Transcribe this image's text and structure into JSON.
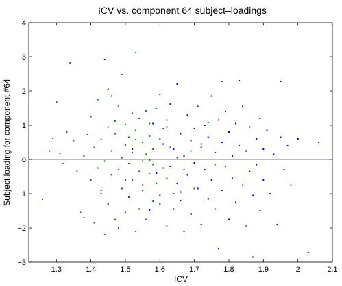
{
  "chart_data": {
    "type": "scatter",
    "title": "ICV vs. component 64 subject–loadings",
    "xlabel": "ICV",
    "ylabel": "Subject loading for component #64",
    "xlim": [
      1.22,
      2.1
    ],
    "ylim": [
      -3,
      4
    ],
    "xticks": [
      1.3,
      1.4,
      1.5,
      1.6,
      1.7,
      1.8,
      1.9,
      2,
      2.1
    ],
    "xtick_labels": [
      "1.3",
      "1.4",
      "1.5",
      "1.6",
      "1.7",
      "1.8",
      "1.9",
      "2",
      "2.1"
    ],
    "yticks": [
      -3,
      -2,
      -1,
      0,
      1,
      2,
      3,
      4
    ],
    "ytick_labels": [
      "−3",
      "−2",
      "−1",
      "0",
      "1",
      "2",
      "3",
      "4"
    ],
    "reference_line_y": 0,
    "grid": false,
    "series": [
      {
        "color": "#008000",
        "points": [
          [
            1.26,
            -1.18
          ],
          [
            1.28,
            0.25
          ],
          [
            1.29,
            0.62
          ],
          [
            1.3,
            1.68
          ],
          [
            1.31,
            0.18
          ],
          [
            1.32,
            -0.12
          ],
          [
            1.33,
            0.8
          ],
          [
            1.34,
            2.82
          ],
          [
            1.35,
            0.55
          ],
          [
            1.36,
            -0.35
          ],
          [
            1.37,
            -1.55
          ],
          [
            1.38,
            -1.7
          ],
          [
            1.38,
            0.1
          ],
          [
            1.39,
            0.72
          ],
          [
            1.4,
            1.25
          ],
          [
            1.4,
            -0.6
          ],
          [
            1.41,
            -1.85
          ],
          [
            1.41,
            0.35
          ],
          [
            1.42,
            -0.25
          ],
          [
            1.42,
            1.75
          ],
          [
            1.43,
            -0.9
          ],
          [
            1.43,
            0.58
          ],
          [
            1.44,
            -2.2
          ],
          [
            1.44,
            -0.05
          ],
          [
            1.45,
            2.05
          ],
          [
            1.45,
            0.95
          ],
          [
            1.45,
            -1.3
          ],
          [
            1.46,
            0.25
          ],
          [
            1.46,
            -0.45
          ],
          [
            1.47,
            1.12
          ],
          [
            1.47,
            -1.75
          ],
          [
            1.47,
            0.75
          ],
          [
            1.48,
            -0.3
          ],
          [
            1.48,
            1.55
          ],
          [
            1.48,
            -2.0
          ],
          [
            1.49,
            0.05
          ],
          [
            1.49,
            2.48
          ],
          [
            1.49,
            -0.85
          ],
          [
            1.5,
            0.42
          ],
          [
            1.5,
            -1.55
          ],
          [
            1.5,
            1.02
          ],
          [
            1.51,
            -0.12
          ],
          [
            1.51,
            0.65
          ],
          [
            1.51,
            -1.1
          ],
          [
            1.52,
            1.35
          ],
          [
            1.52,
            0.2
          ],
          [
            1.52,
            -0.6
          ],
          [
            1.53,
            3.12
          ],
          [
            1.53,
            -2.1
          ],
          [
            1.53,
            0.85
          ],
          [
            1.54,
            -0.35
          ],
          [
            1.54,
            1.2
          ],
          [
            1.54,
            -1.45
          ],
          [
            1.55,
            0.5
          ],
          [
            1.55,
            -0.05
          ],
          [
            1.55,
            -0.9
          ],
          [
            1.56,
            1.42
          ],
          [
            1.56,
            0.15
          ],
          [
            1.56,
            -1.75
          ],
          [
            1.57,
            0.68
          ],
          [
            1.57,
            -0.42
          ],
          [
            1.57,
            1.05
          ],
          [
            1.58,
            -1.22
          ],
          [
            1.58,
            0.3
          ],
          [
            1.58,
            -0.15
          ],
          [
            1.59,
            1.48
          ],
          [
            1.59,
            -0.7
          ],
          [
            1.6,
            0.6
          ],
          [
            1.6,
            -1.3
          ],
          [
            1.61,
            0.9
          ],
          [
            1.61,
            -0.25
          ],
          [
            1.62,
            1.15
          ],
          [
            1.62,
            -0.55
          ],
          [
            1.63,
            0.35
          ],
          [
            1.64,
            -1.0
          ],
          [
            1.65,
            0.05
          ],
          [
            1.66,
            0.75
          ],
          [
            1.67,
            -0.3
          ],
          [
            1.68,
            1.3
          ],
          [
            1.69,
            0.25
          ],
          [
            1.7,
            -0.85
          ],
          [
            1.72,
            0.45
          ],
          [
            1.74,
            1.08
          ],
          [
            1.76,
            -0.15
          ],
          [
            1.78,
            2.28
          ],
          [
            1.43,
            -1.0
          ],
          [
            1.46,
            1.85
          ],
          [
            1.5,
            -0.6
          ],
          [
            1.53,
            0.58
          ],
          [
            1.57,
            -0.02
          ]
        ]
      },
      {
        "color": "#0000ff",
        "points": [
          [
            1.44,
            2.92
          ],
          [
            1.52,
            0.3
          ],
          [
            1.55,
            -0.75
          ],
          [
            1.57,
            -1.48
          ],
          [
            1.58,
            1.05
          ],
          [
            1.59,
            -0.4
          ],
          [
            1.6,
            1.9
          ],
          [
            1.6,
            -1.05
          ],
          [
            1.61,
            0.45
          ],
          [
            1.62,
            -1.95
          ],
          [
            1.62,
            0.95
          ],
          [
            1.63,
            -0.2
          ],
          [
            1.63,
            1.62
          ],
          [
            1.64,
            -1.45
          ],
          [
            1.64,
            0.3
          ],
          [
            1.65,
            -0.7
          ],
          [
            1.65,
            2.2
          ],
          [
            1.66,
            0.75
          ],
          [
            1.66,
            -1.2
          ],
          [
            1.67,
            0.1
          ],
          [
            1.67,
            -2.1
          ],
          [
            1.68,
            1.28
          ],
          [
            1.68,
            -0.45
          ],
          [
            1.69,
            0.55
          ],
          [
            1.69,
            -1.6
          ],
          [
            1.7,
            0.9
          ],
          [
            1.7,
            -0.1
          ],
          [
            1.71,
            1.55
          ],
          [
            1.71,
            -0.85
          ],
          [
            1.72,
            0.35
          ],
          [
            1.72,
            -1.9
          ],
          [
            1.73,
            1.0
          ],
          [
            1.73,
            -0.3
          ],
          [
            1.74,
            0.65
          ],
          [
            1.74,
            -1.15
          ],
          [
            1.75,
            1.85
          ],
          [
            1.75,
            -0.6
          ],
          [
            1.76,
            0.2
          ],
          [
            1.76,
            -1.45
          ],
          [
            1.77,
            1.15
          ],
          [
            1.77,
            -2.6
          ],
          [
            1.78,
            0.5
          ],
          [
            1.78,
            -0.9
          ],
          [
            1.79,
            1.4
          ],
          [
            1.79,
            -0.2
          ],
          [
            1.8,
            0.8
          ],
          [
            1.8,
            -1.75
          ],
          [
            1.81,
            0.1
          ],
          [
            1.81,
            -0.55
          ],
          [
            1.82,
            1.05
          ],
          [
            1.82,
            -1.25
          ],
          [
            1.83,
            2.3
          ],
          [
            1.83,
            0.4
          ],
          [
            1.84,
            -0.75
          ],
          [
            1.84,
            1.55
          ],
          [
            1.85,
            -1.95
          ],
          [
            1.85,
            0.25
          ],
          [
            1.86,
            -0.35
          ],
          [
            1.86,
            0.95
          ],
          [
            1.87,
            -2.85
          ],
          [
            1.87,
            -1.05
          ],
          [
            1.88,
            0.6
          ],
          [
            1.88,
            -0.15
          ],
          [
            1.89,
            1.2
          ],
          [
            1.89,
            -1.5
          ],
          [
            1.9,
            0.3
          ],
          [
            1.9,
            -0.6
          ],
          [
            1.91,
            0.85
          ],
          [
            1.92,
            -1.0
          ],
          [
            1.93,
            0.15
          ],
          [
            1.94,
            -1.9
          ],
          [
            1.95,
            2.28
          ],
          [
            1.95,
            0.65
          ],
          [
            1.96,
            -0.3
          ],
          [
            1.97,
            0.4
          ],
          [
            1.98,
            -0.75
          ],
          [
            2.0,
            0.6
          ],
          [
            2.03,
            -2.72
          ],
          [
            2.06,
            0.5
          ],
          [
            1.66,
            -0.95
          ]
        ]
      }
    ]
  }
}
